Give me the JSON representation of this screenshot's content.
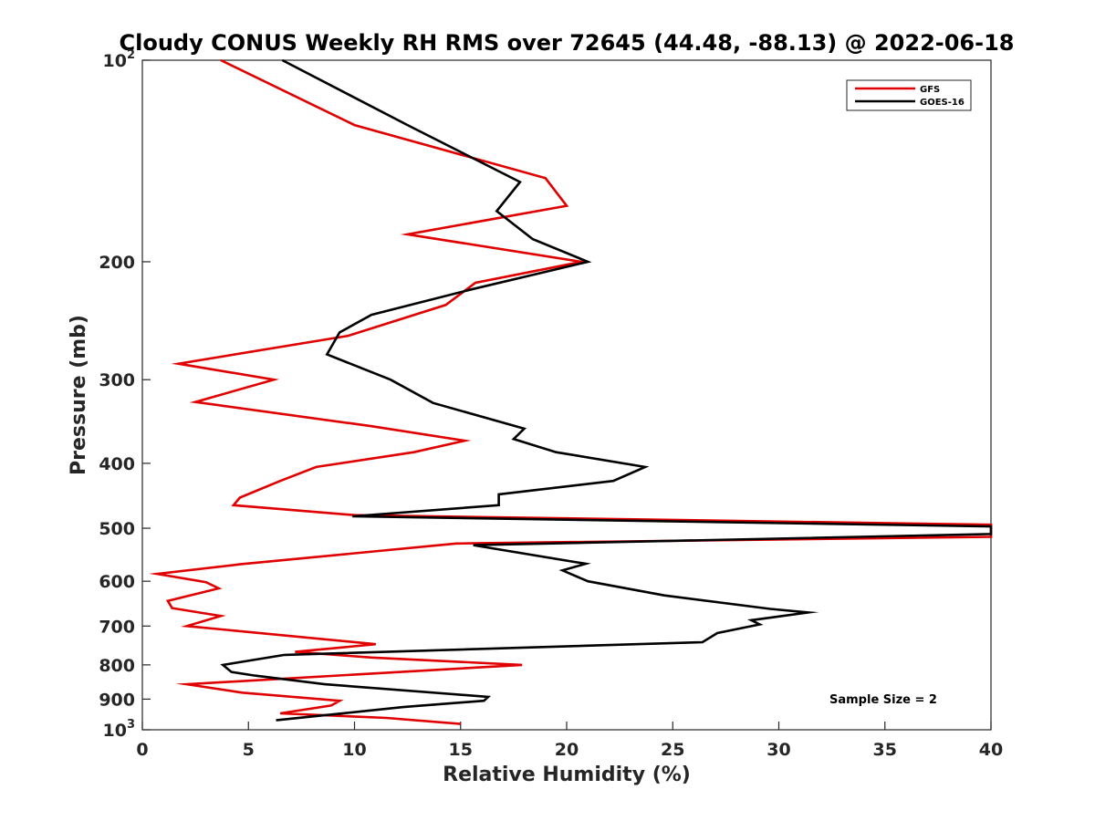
{
  "chart_data": {
    "type": "line",
    "title": "Cloudy CONUS Weekly RH RMS over 72645 (44.48, -88.13) @ 2022-06-18",
    "xlabel": "Relative Humidity (%)",
    "ylabel": "Pressure (mb)",
    "xlim": [
      0,
      40
    ],
    "ylim": [
      100,
      1000
    ],
    "y_scale": "log",
    "y_reversed": true,
    "grid": false,
    "legend_position": "top-right",
    "x_ticks": [
      "0",
      "5",
      "10",
      "15",
      "20",
      "25",
      "30",
      "35",
      "40"
    ],
    "y_ticks": [
      {
        "value": 100,
        "base": "10",
        "exp": "2"
      },
      {
        "value": 200,
        "label": "200"
      },
      {
        "value": 300,
        "label": "300"
      },
      {
        "value": 400,
        "label": "400"
      },
      {
        "value": 500,
        "label": "500"
      },
      {
        "value": 600,
        "label": "600"
      },
      {
        "value": 700,
        "label": "700"
      },
      {
        "value": 800,
        "label": "800"
      },
      {
        "value": 900,
        "label": "900"
      },
      {
        "value": 1000,
        "base": "10",
        "exp": "3"
      }
    ],
    "annotation": "Sample Size = 2",
    "series": [
      {
        "name": "GFS",
        "color": "#e00000",
        "points": [
          [
            3.7,
            100
          ],
          [
            10.0,
            125
          ],
          [
            19.0,
            150
          ],
          [
            20.0,
            165
          ],
          [
            12.5,
            182
          ],
          [
            20.7,
            200
          ],
          [
            15.7,
            215
          ],
          [
            14.3,
            232
          ],
          [
            9.7,
            258
          ],
          [
            1.7,
            284
          ],
          [
            6.2,
            300
          ],
          [
            2.5,
            324
          ],
          [
            10.8,
            352
          ],
          [
            15.2,
            370
          ],
          [
            12.8,
            385
          ],
          [
            8.2,
            405
          ],
          [
            6.5,
            425
          ],
          [
            4.6,
            450
          ],
          [
            4.3,
            462
          ],
          [
            10.0,
            478
          ],
          [
            40.0,
            494
          ],
          [
            40.0,
            515
          ],
          [
            14.8,
            527
          ],
          [
            4.6,
            566
          ],
          [
            0.7,
            585
          ],
          [
            3.0,
            602
          ],
          [
            3.6,
            615
          ],
          [
            1.2,
            642
          ],
          [
            1.4,
            658
          ],
          [
            3.7,
            676
          ],
          [
            2.1,
            700
          ],
          [
            11.0,
            745
          ],
          [
            7.2,
            765
          ],
          [
            10.8,
            780
          ],
          [
            17.9,
            800
          ],
          [
            2.1,
            855
          ],
          [
            4.7,
            880
          ],
          [
            9.3,
            905
          ],
          [
            8.9,
            920
          ],
          [
            6.5,
            945
          ],
          [
            11.5,
            960
          ],
          [
            15.0,
            980
          ]
        ]
      },
      {
        "name": "GOES-16",
        "color": "#000000",
        "points": [
          [
            6.6,
            100
          ],
          [
            12.5,
            125
          ],
          [
            17.8,
            152
          ],
          [
            16.7,
            168
          ],
          [
            18.4,
            185
          ],
          [
            21.0,
            200
          ],
          [
            15.5,
            220
          ],
          [
            10.8,
            240
          ],
          [
            9.3,
            255
          ],
          [
            8.7,
            275
          ],
          [
            11.7,
            300
          ],
          [
            13.7,
            325
          ],
          [
            18.0,
            355
          ],
          [
            17.5,
            368
          ],
          [
            19.5,
            385
          ],
          [
            23.7,
            405
          ],
          [
            22.2,
            425
          ],
          [
            16.8,
            445
          ],
          [
            16.8,
            462
          ],
          [
            9.9,
            480
          ],
          [
            40.0,
            497
          ],
          [
            40.0,
            510
          ],
          [
            15.6,
            530
          ],
          [
            20.9,
            565
          ],
          [
            19.8,
            578
          ],
          [
            21.0,
            600
          ],
          [
            24.6,
            630
          ],
          [
            29.6,
            660
          ],
          [
            31.4,
            668
          ],
          [
            28.7,
            686
          ],
          [
            29.1,
            696
          ],
          [
            27.1,
            717
          ],
          [
            26.4,
            740
          ],
          [
            6.7,
            773
          ],
          [
            3.8,
            800
          ],
          [
            4.2,
            820
          ],
          [
            5.3,
            830
          ],
          [
            8.6,
            855
          ],
          [
            16.3,
            893
          ],
          [
            16.1,
            905
          ],
          [
            12.3,
            925
          ],
          [
            6.3,
            968
          ]
        ]
      }
    ]
  }
}
